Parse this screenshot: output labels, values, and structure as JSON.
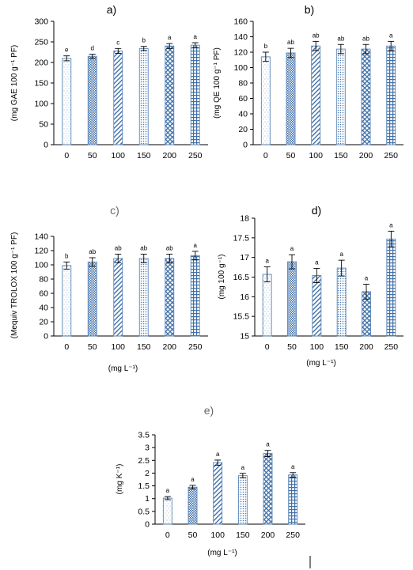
{
  "chart_data": [
    {
      "type": "bar",
      "panel": "a)",
      "categories": [
        "0",
        "50",
        "100",
        "150",
        "200",
        "250"
      ],
      "values": [
        210,
        215,
        228,
        234,
        240,
        242
      ],
      "errors": [
        6,
        5,
        6,
        5,
        6,
        6
      ],
      "significance": [
        "e",
        "d",
        "c",
        "b",
        "a",
        "a"
      ],
      "ylabel": "(mg GAE 100 g⁻¹ PF)",
      "xlabel": "",
      "ylim": [
        0,
        300
      ],
      "yticks": [
        0,
        50,
        100,
        150,
        200,
        250,
        300
      ]
    },
    {
      "type": "bar",
      "panel": "b)",
      "categories": [
        "0",
        "50",
        "100",
        "150",
        "200",
        "250"
      ],
      "values": [
        114,
        119,
        128,
        124,
        124,
        128
      ],
      "errors": [
        6,
        6,
        6,
        6,
        6,
        6
      ],
      "significance": [
        "b",
        "ab",
        "ab",
        "ab",
        "ab",
        "a"
      ],
      "ylabel": "(mg QE 100 g⁻¹ PF)",
      "xlabel": "",
      "ylim": [
        0,
        160
      ],
      "yticks": [
        0,
        20,
        40,
        60,
        80,
        100,
        120,
        140,
        160
      ]
    },
    {
      "type": "bar",
      "panel": "c)",
      "categories": [
        "0",
        "50",
        "100",
        "150",
        "200",
        "250"
      ],
      "values": [
        99,
        104,
        109,
        109,
        109,
        113
      ],
      "errors": [
        5,
        6,
        6,
        6,
        6,
        6
      ],
      "significance": [
        "b",
        "ab",
        "ab",
        "ab",
        "ab",
        "a"
      ],
      "ylabel": "(Mequiv TROLOX 100 g⁻¹ PF)",
      "xlabel": "(mg L⁻¹)",
      "ylim": [
        0,
        140
      ],
      "yticks": [
        0,
        20,
        40,
        60,
        80,
        100,
        120,
        140
      ]
    },
    {
      "type": "bar",
      "panel": "d)",
      "categories": [
        "0",
        "50",
        "100",
        "150",
        "200",
        "250"
      ],
      "values": [
        16.57,
        16.89,
        16.54,
        16.73,
        16.13,
        17.47
      ],
      "errors": [
        0.19,
        0.18,
        0.18,
        0.2,
        0.19,
        0.2
      ],
      "significance": [
        "a",
        "a",
        "a",
        "a",
        "a",
        "a"
      ],
      "ylabel": "(mg 100 g⁻¹)",
      "xlabel": "(mg L⁻¹)",
      "ylim": [
        15,
        18
      ],
      "yticks": [
        15,
        15.5,
        16,
        16.5,
        17,
        17.5,
        18
      ]
    },
    {
      "type": "bar",
      "panel": "e)",
      "categories": [
        "0",
        "50",
        "100",
        "150",
        "200",
        "250"
      ],
      "values": [
        1.02,
        1.45,
        2.41,
        1.9,
        2.77,
        1.93
      ],
      "errors": [
        0.06,
        0.07,
        0.1,
        0.09,
        0.12,
        0.09
      ],
      "significance": [
        "a",
        "a",
        "a",
        "a",
        "a",
        "a"
      ],
      "ylabel": "(mg K⁻¹)",
      "xlabel": "(mg L⁻¹)",
      "ylim": [
        0,
        3.5
      ],
      "yticks": [
        0,
        0.5,
        1,
        1.5,
        2,
        2.5,
        3,
        3.5
      ]
    }
  ],
  "colors": {
    "bar_outline": "#5a86b8",
    "bar_pattern": "#3f6fa6",
    "text": "#000000",
    "panel_letter_muted": "#666666",
    "axis": "#000000"
  }
}
